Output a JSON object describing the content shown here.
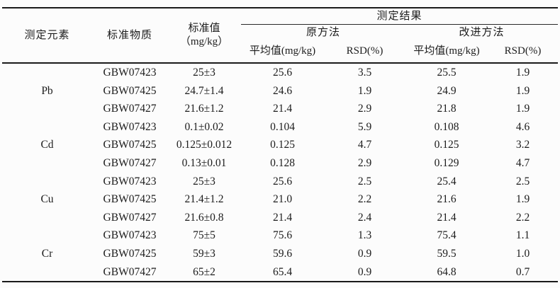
{
  "page": {
    "background": "#fcfcfc",
    "text_color": "#1c1c1c",
    "rule_color": "#1a1a1a"
  },
  "table": {
    "headers": {
      "element": "测定元素",
      "material": "标准物质",
      "standard_value_line1": "标准值",
      "standard_value_line2": "（mg/kg）",
      "results_group": "测定结果",
      "original_method": "原方法",
      "improved_method": "改进方法",
      "mean": "平均值(mg/kg)",
      "rsd": "RSD(%)"
    },
    "groups": [
      {
        "element": "Pb",
        "rows": [
          {
            "material": "GBW07423",
            "standard": "25±3",
            "orig_mean": "25.6",
            "orig_rsd": "3.5",
            "impr_mean": "25.5",
            "impr_rsd": "1.9"
          },
          {
            "material": "GBW07425",
            "standard": "24.7±1.4",
            "orig_mean": "24.6",
            "orig_rsd": "1.9",
            "impr_mean": "24.9",
            "impr_rsd": "1.9"
          },
          {
            "material": "GBW07427",
            "standard": "21.6±1.2",
            "orig_mean": "21.4",
            "orig_rsd": "2.9",
            "impr_mean": "21.8",
            "impr_rsd": "1.9"
          }
        ]
      },
      {
        "element": "Cd",
        "rows": [
          {
            "material": "GBW07423",
            "standard": "0.1±0.02",
            "orig_mean": "0.104",
            "orig_rsd": "5.9",
            "impr_mean": "0.108",
            "impr_rsd": "4.6"
          },
          {
            "material": "GBW07425",
            "standard": "0.125±0.012",
            "orig_mean": "0.125",
            "orig_rsd": "4.7",
            "impr_mean": "0.125",
            "impr_rsd": "3.2"
          },
          {
            "material": "GBW07427",
            "standard": "0.13±0.01",
            "orig_mean": "0.128",
            "orig_rsd": "2.9",
            "impr_mean": "0.129",
            "impr_rsd": "4.7"
          }
        ]
      },
      {
        "element": "Cu",
        "rows": [
          {
            "material": "GBW07423",
            "standard": "25±3",
            "orig_mean": "25.6",
            "orig_rsd": "2.5",
            "impr_mean": "25.4",
            "impr_rsd": "2.5"
          },
          {
            "material": "GBW07425",
            "standard": "21.4±1.2",
            "orig_mean": "21.0",
            "orig_rsd": "2.2",
            "impr_mean": "21.6",
            "impr_rsd": "1.9"
          },
          {
            "material": "GBW07427",
            "standard": "21.6±0.8",
            "orig_mean": "21.4",
            "orig_rsd": "2.4",
            "impr_mean": "21.4",
            "impr_rsd": "2.2"
          }
        ]
      },
      {
        "element": "Cr",
        "rows": [
          {
            "material": "GBW07423",
            "standard": "75±5",
            "orig_mean": "75.6",
            "orig_rsd": "1.3",
            "impr_mean": "75.4",
            "impr_rsd": "1.1"
          },
          {
            "material": "GBW07425",
            "standard": "59±3",
            "orig_mean": "59.6",
            "orig_rsd": "0.9",
            "impr_mean": "59.5",
            "impr_rsd": "1.0"
          },
          {
            "material": "GBW07427",
            "standard": "65±2",
            "orig_mean": "65.4",
            "orig_rsd": "0.9",
            "impr_mean": "64.8",
            "impr_rsd": "0.7"
          }
        ]
      }
    ]
  }
}
